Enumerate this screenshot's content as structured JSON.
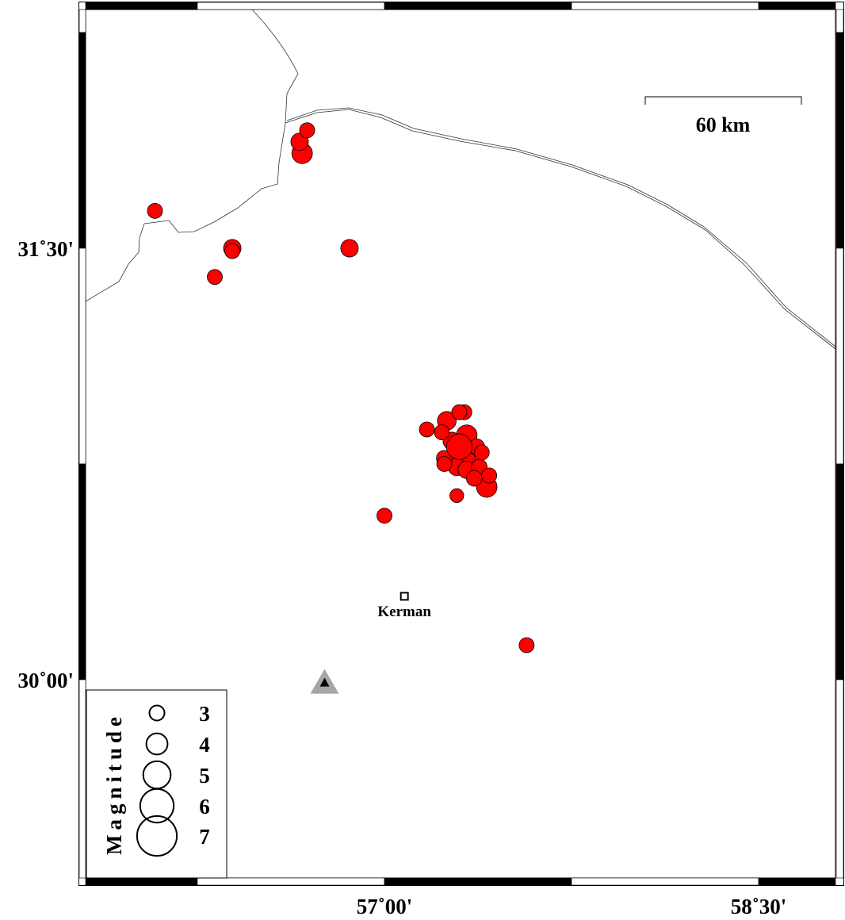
{
  "map": {
    "lon_range": [
      55.8,
      58.81
    ],
    "lat_range": [
      29.31,
      32.33
    ],
    "x_ticks": [
      {
        "value": 57.0,
        "label": "57˚00'"
      },
      {
        "value": 58.5,
        "label": "58˚30'"
      }
    ],
    "y_ticks": [
      {
        "value": 31.5,
        "label": "31˚30'"
      },
      {
        "value": 30.0,
        "label": "30˚00'"
      }
    ],
    "scale_bar": {
      "label": "60 km",
      "km": 60
    },
    "event_color": "#ff0000",
    "city": {
      "name": "Kerman",
      "lon": 57.08,
      "lat": 30.29,
      "icon": "square-marker"
    },
    "station": {
      "lon": 56.76,
      "lat": 29.99,
      "icon": "triangle-marker",
      "color": "#a6a6a6"
    },
    "legend": {
      "title": "Magnitude",
      "magnitudes": [
        3,
        4,
        5,
        6,
        7
      ],
      "labels": [
        "3",
        "4",
        "5",
        "6",
        "7"
      ]
    },
    "events": [
      {
        "lon": 56.69,
        "lat": 31.91,
        "mag": 3.0
      },
      {
        "lon": 56.66,
        "lat": 31.87,
        "mag": 3.4
      },
      {
        "lon": 56.67,
        "lat": 31.83,
        "mag": 3.9
      },
      {
        "lon": 56.08,
        "lat": 31.63,
        "mag": 3.0
      },
      {
        "lon": 56.39,
        "lat": 31.5,
        "mag": 3.4
      },
      {
        "lon": 56.39,
        "lat": 31.49,
        "mag": 3.0
      },
      {
        "lon": 56.86,
        "lat": 31.5,
        "mag": 3.4
      },
      {
        "lon": 56.32,
        "lat": 31.4,
        "mag": 3.0
      },
      {
        "lon": 57.32,
        "lat": 30.93,
        "mag": 3.0
      },
      {
        "lon": 57.3,
        "lat": 30.93,
        "mag": 3.0
      },
      {
        "lon": 57.25,
        "lat": 30.9,
        "mag": 3.6
      },
      {
        "lon": 57.17,
        "lat": 30.87,
        "mag": 3.0
      },
      {
        "lon": 57.23,
        "lat": 30.86,
        "mag": 3.0
      },
      {
        "lon": 57.33,
        "lat": 30.85,
        "mag": 3.9
      },
      {
        "lon": 57.27,
        "lat": 30.83,
        "mag": 3.4
      },
      {
        "lon": 57.37,
        "lat": 30.81,
        "mag": 3.1
      },
      {
        "lon": 57.39,
        "lat": 30.79,
        "mag": 3.0
      },
      {
        "lon": 57.24,
        "lat": 30.77,
        "mag": 3.1
      },
      {
        "lon": 57.33,
        "lat": 30.76,
        "mag": 3.6
      },
      {
        "lon": 57.24,
        "lat": 30.75,
        "mag": 3.0
      },
      {
        "lon": 57.29,
        "lat": 30.74,
        "mag": 3.4
      },
      {
        "lon": 57.33,
        "lat": 30.73,
        "mag": 3.4
      },
      {
        "lon": 57.38,
        "lat": 30.74,
        "mag": 3.1
      },
      {
        "lon": 57.42,
        "lat": 30.71,
        "mag": 3.0
      },
      {
        "lon": 57.36,
        "lat": 30.7,
        "mag": 3.1
      },
      {
        "lon": 57.41,
        "lat": 30.67,
        "mag": 3.9
      },
      {
        "lon": 57.3,
        "lat": 30.81,
        "mag": 4.7
      },
      {
        "lon": 57.29,
        "lat": 30.64,
        "mag": 2.8
      },
      {
        "lon": 57.0,
        "lat": 30.57,
        "mag": 3.0
      },
      {
        "lon": 57.57,
        "lat": 30.12,
        "mag": 3.0
      }
    ]
  }
}
